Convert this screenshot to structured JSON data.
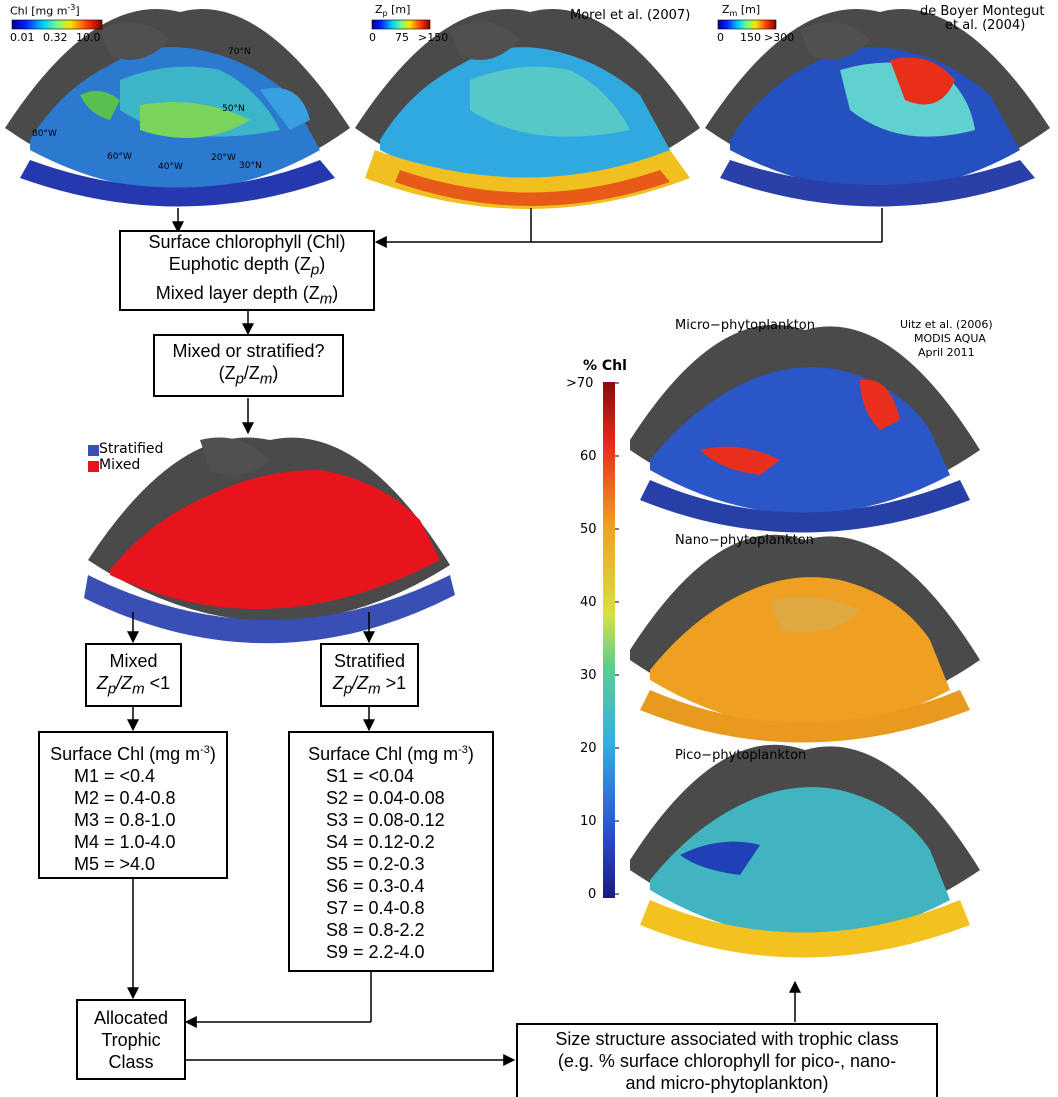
{
  "maps": {
    "chl": {
      "unit_label": "Chl  [mg m",
      "unit_sup": "-3",
      "unit_close": "]",
      "ticks": [
        "0.01",
        "0.32",
        "10.0"
      ]
    },
    "zp": {
      "unit_label": "Z",
      "unit_sub": "p",
      "unit_rest": " [m]",
      "ticks": [
        "0",
        "75",
        ">150"
      ],
      "citation": "Morel et al. (2007)"
    },
    "zm": {
      "unit_label": "Z",
      "unit_sub": "m",
      "unit_rest": " [m]",
      "ticks": [
        "0",
        "150",
        ">300"
      ],
      "citation_line1": "de Boyer Montegut",
      "citation_line2": "et al. (2004)"
    },
    "graticule": [
      "70°N",
      "50°N",
      "30°N",
      "80°W",
      "60°W",
      "40°W",
      "20°W"
    ]
  },
  "boxes": {
    "inputs": [
      "Surface chlorophyll (Chl)",
      "Euphotic depth (Z",
      "p",
      ")",
      "Mixed layer depth (Z",
      "m",
      ")"
    ],
    "decision": {
      "line1": "Mixed or stratified?",
      "line2_a": "(Z",
      "line2_sub1": "p",
      "line2_b": "/Z",
      "line2_sub2": "m",
      "line2_c": ")"
    },
    "mixed": {
      "title": "Mixed",
      "a": "Z",
      "sub1": "p",
      "b": "/Z",
      "sub2": "m",
      "c": " <1"
    },
    "stratified": {
      "title": "Stratified",
      "a": "Z",
      "sub1": "p",
      "b": "/Z",
      "sub2": "m",
      "c": " >1"
    },
    "mixed_classes": {
      "header": "Surface Chl (mg m",
      "header_sup": "-3",
      "header_close": ")",
      "items": [
        "M1 = <0.4",
        "M2 = 0.4-0.8",
        "M3 = 0.8-1.0",
        "M4 = 1.0-4.0",
        "M5 = >4.0"
      ]
    },
    "strat_classes": {
      "header": "Surface Chl (mg m",
      "header_sup": "-3",
      "header_close": ")",
      "items": [
        "S1 = <0.04",
        "S2 = 0.04-0.08",
        "S3 = 0.08-0.12",
        "S4 = 0.12-0.2",
        "S5 = 0.2-0.3",
        "S6 = 0.3-0.4",
        "S7 = 0.4-0.8",
        "S8 = 0.8-2.2",
        "S9 = 2.2-4.0"
      ]
    },
    "allocated": [
      "Allocated",
      "Trophic",
      "Class"
    ],
    "size_structure": [
      "Size structure associated with trophic class",
      "(e.g. % surface chlorophyll for pico-, nano-",
      "and micro-phytoplankton)"
    ]
  },
  "legend": {
    "stratified": "Stratified",
    "mixed": "Mixed",
    "stratified_color": "#3a4fb5",
    "mixed_color": "#e8141c"
  },
  "right_panel": {
    "micro": "Micro−phytoplankton",
    "nano": "Nano−phytoplankton",
    "pico": "Pico−phytoplankton",
    "source": [
      "Uitz et al. (2006)",
      "MODIS AQUA",
      "April 2011"
    ],
    "colorbar_title": "% Chl",
    "colorbar_ticks": [
      ">70",
      "60",
      "50",
      "40",
      "30",
      "20",
      "10",
      "0"
    ]
  }
}
